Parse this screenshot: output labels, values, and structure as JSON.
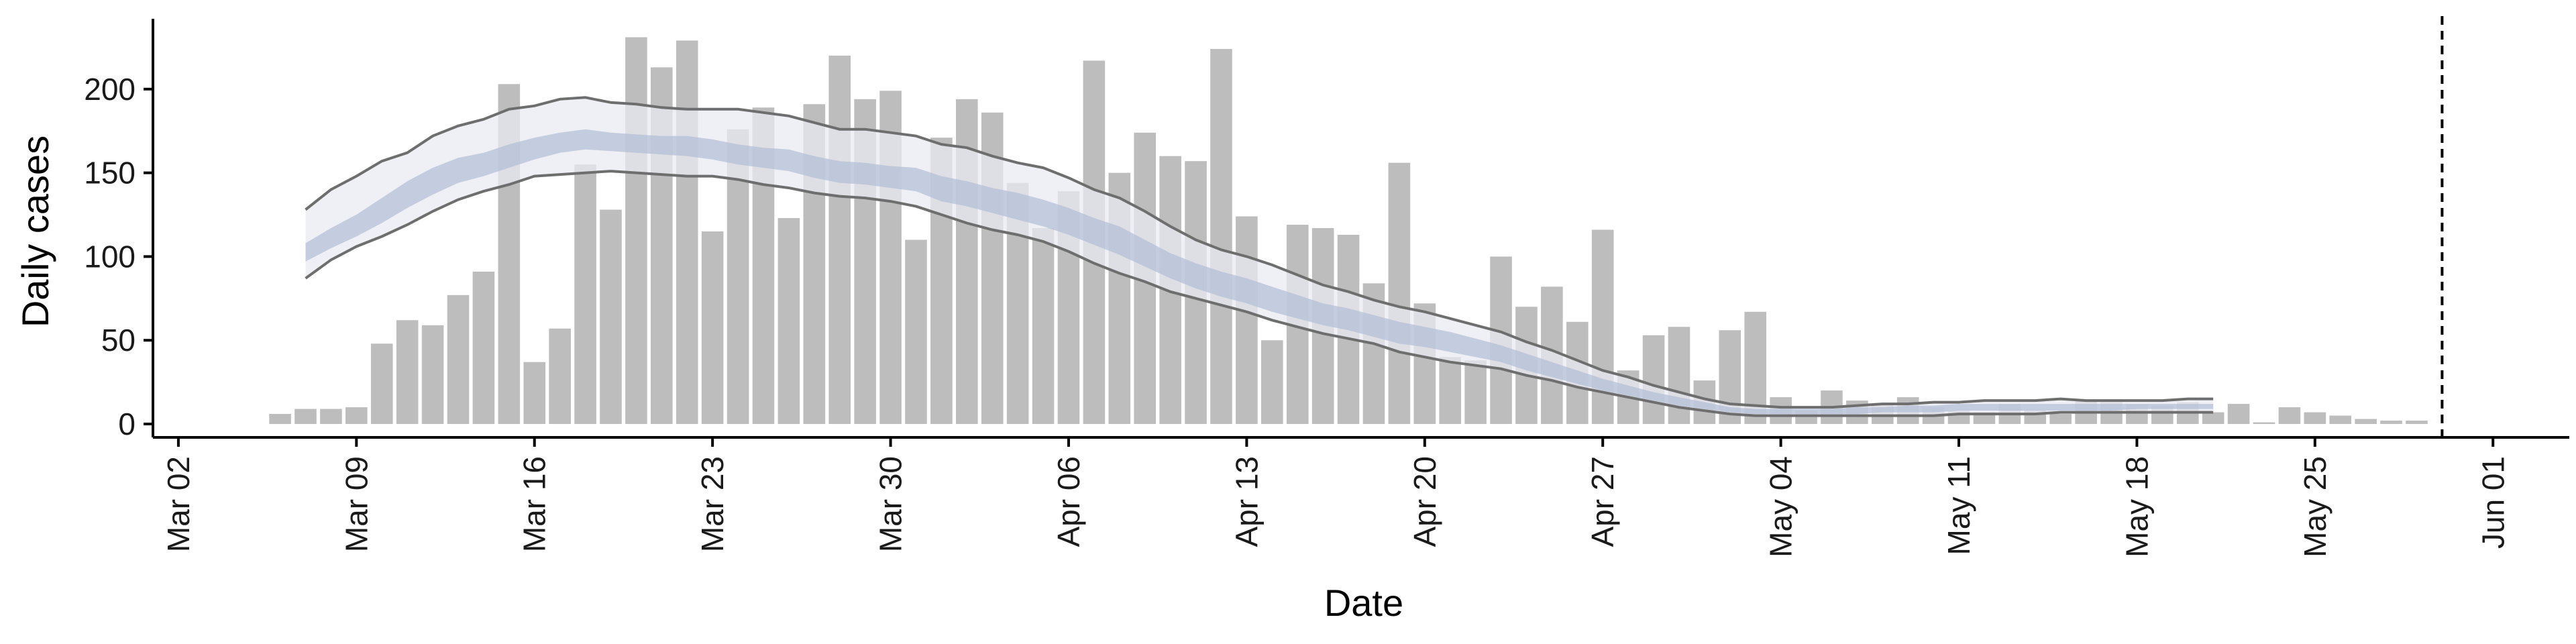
{
  "chart_data": {
    "type": "bar",
    "title": "",
    "xlabel": "Date",
    "ylabel": "Daily cases",
    "ylim": [
      -8,
      242
    ],
    "yticks": [
      0,
      50,
      100,
      150,
      200
    ],
    "xlim": [
      "2020-03-01",
      "2020-06-04"
    ],
    "xticks": [
      {
        "date": "2020-03-02",
        "label": "Mar 02"
      },
      {
        "date": "2020-03-09",
        "label": "Mar 09"
      },
      {
        "date": "2020-03-16",
        "label": "Mar 16"
      },
      {
        "date": "2020-03-23",
        "label": "Mar 23"
      },
      {
        "date": "2020-03-30",
        "label": "Mar 30"
      },
      {
        "date": "2020-04-06",
        "label": "Apr 06"
      },
      {
        "date": "2020-04-13",
        "label": "Apr 13"
      },
      {
        "date": "2020-04-20",
        "label": "Apr 20"
      },
      {
        "date": "2020-04-27",
        "label": "Apr 27"
      },
      {
        "date": "2020-05-04",
        "label": "May 04"
      },
      {
        "date": "2020-05-11",
        "label": "May 11"
      },
      {
        "date": "2020-05-18",
        "label": "May 18"
      },
      {
        "date": "2020-05-25",
        "label": "May 25"
      },
      {
        "date": "2020-06-01",
        "label": "Jun 01"
      }
    ],
    "grid": false,
    "legend": "none",
    "colors": {
      "bars": "#bdbdbd",
      "outer_band": "#e9ebf2",
      "inner_band": "#b2bcd5",
      "bound_lines": "#6e6e6e",
      "reference_line": "#000000",
      "axes": "#000000"
    },
    "bars": {
      "start_date": "2020-03-06",
      "values": [
        6,
        9,
        9,
        10,
        48,
        62,
        59,
        77,
        91,
        203,
        37,
        57,
        155,
        128,
        231,
        213,
        229,
        115,
        176,
        189,
        123,
        191,
        220,
        194,
        199,
        110,
        171,
        194,
        186,
        144,
        117,
        139,
        217,
        150,
        174,
        160,
        157,
        224,
        124,
        50,
        119,
        117,
        113,
        84,
        156,
        72,
        40,
        38,
        100,
        70,
        82,
        61,
        116,
        32,
        53,
        58,
        26,
        56,
        67,
        16,
        8,
        20,
        14,
        12,
        16,
        10,
        8,
        7,
        12,
        8,
        6,
        14,
        13,
        12,
        11,
        13,
        7,
        12,
        1,
        10,
        7,
        5,
        3,
        2,
        2
      ]
    },
    "forecast": {
      "start_date": "2020-03-07",
      "upper": [
        128,
        140,
        148,
        157,
        162,
        172,
        178,
        182,
        188,
        190,
        194,
        195,
        192,
        191,
        189,
        188,
        188,
        188,
        186,
        184,
        180,
        176,
        176,
        174,
        172,
        167,
        165,
        160,
        156,
        153,
        147,
        140,
        135,
        127,
        118,
        110,
        104,
        100,
        95,
        89,
        83,
        79,
        74,
        70,
        67,
        63,
        59,
        55,
        49,
        44,
        38,
        32,
        28,
        23,
        19,
        15,
        12,
        11,
        10,
        10,
        10,
        11,
        12,
        12,
        13,
        13,
        14,
        14,
        14,
        15,
        14,
        14,
        14,
        14,
        15,
        15
      ],
      "upper_inner": [
        108,
        117,
        125,
        135,
        145,
        153,
        159,
        162,
        167,
        171,
        174,
        176,
        174,
        173,
        172,
        172,
        170,
        167,
        165,
        164,
        160,
        157,
        156,
        154,
        153,
        148,
        145,
        141,
        138,
        134,
        129,
        123,
        118,
        110,
        102,
        96,
        91,
        87,
        82,
        77,
        72,
        69,
        65,
        61,
        58,
        55,
        51,
        47,
        42,
        37,
        32,
        27,
        23,
        19,
        16,
        13,
        10,
        9,
        9,
        9,
        9,
        10,
        10,
        11,
        11,
        12,
        12,
        12,
        12,
        12,
        12,
        12,
        12,
        12,
        12,
        12
      ],
      "lower_inner": [
        97,
        105,
        112,
        120,
        129,
        137,
        144,
        148,
        153,
        158,
        162,
        164,
        163,
        162,
        161,
        160,
        158,
        155,
        153,
        151,
        147,
        144,
        143,
        141,
        139,
        133,
        130,
        126,
        122,
        118,
        113,
        107,
        101,
        94,
        87,
        81,
        76,
        72,
        67,
        63,
        59,
        56,
        52,
        48,
        46,
        43,
        40,
        37,
        32,
        28,
        24,
        20,
        17,
        14,
        11,
        9,
        7,
        6,
        6,
        6,
        6,
        6,
        7,
        7,
        7,
        8,
        8,
        8,
        8,
        8,
        8,
        8,
        9,
        9,
        9,
        9
      ],
      "lower": [
        87,
        98,
        106,
        112,
        119,
        127,
        134,
        139,
        143,
        148,
        149,
        150,
        151,
        150,
        149,
        148,
        148,
        146,
        143,
        141,
        138,
        136,
        135,
        133,
        130,
        125,
        120,
        116,
        113,
        109,
        103,
        96,
        90,
        85,
        79,
        75,
        71,
        67,
        62,
        58,
        54,
        51,
        48,
        43,
        40,
        37,
        35,
        33,
        29,
        26,
        22,
        19,
        16,
        13,
        10,
        8,
        6,
        5,
        5,
        5,
        5,
        5,
        5,
        5,
        5,
        6,
        6,
        6,
        6,
        7,
        7,
        7,
        7,
        7,
        7,
        7
      ]
    },
    "reference_line": {
      "date": "2020-05-30",
      "style": "dashed"
    }
  }
}
